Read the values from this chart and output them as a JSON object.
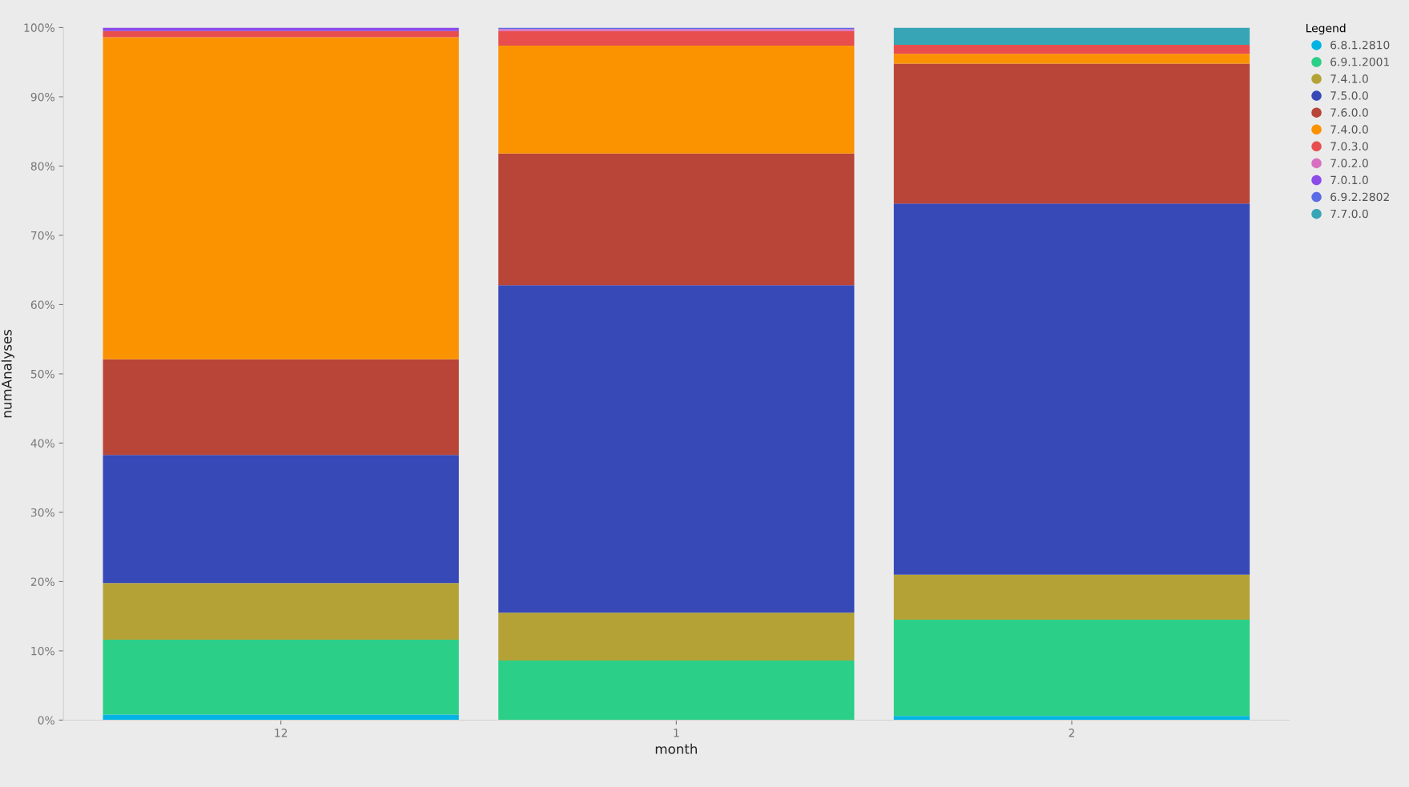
{
  "chart_data": {
    "type": "bar",
    "stacked": true,
    "xlabel": "month",
    "ylabel": "numAnalyses",
    "legend_title": "Legend",
    "categories": [
      "12",
      "1",
      "2"
    ],
    "series": [
      {
        "name": "6.8.1.2810",
        "color": "#01b4e4",
        "values": [
          0.8,
          0,
          0.6
        ]
      },
      {
        "name": "6.9.1.2001",
        "color": "#2bcf87",
        "values": [
          10.8,
          8.6,
          13.9
        ]
      },
      {
        "name": "7.4.1.0",
        "color": "#b5a236",
        "values": [
          8.2,
          6.9,
          6.5
        ]
      },
      {
        "name": "7.5.0.0",
        "color": "#3748b7",
        "values": [
          18.5,
          47.3,
          53.6
        ]
      },
      {
        "name": "7.6.0.0",
        "color": "#b84538",
        "values": [
          13.8,
          19.0,
          20.2
        ]
      },
      {
        "name": "7.4.0.0",
        "color": "#fb9300",
        "values": [
          46.5,
          15.6,
          1.4
        ]
      },
      {
        "name": "7.0.3.0",
        "color": "#e84e4e",
        "values": [
          0.9,
          2.1,
          1.3
        ]
      },
      {
        "name": "7.0.2.0",
        "color": "#d86fc0",
        "values": [
          0,
          0.3,
          0
        ]
      },
      {
        "name": "7.0.1.0",
        "color": "#8c4ce8",
        "values": [
          0.5,
          0,
          0
        ]
      },
      {
        "name": "6.9.2.2802",
        "color": "#5b6ce6",
        "values": [
          0,
          0.2,
          0
        ]
      },
      {
        "name": "7.7.0.0",
        "color": "#37a5b5",
        "values": [
          0,
          0,
          2.5
        ]
      }
    ],
    "ylim": [
      0,
      100
    ],
    "yticks": [
      {
        "value": 0,
        "label": "0%"
      },
      {
        "value": 10,
        "label": "10%"
      },
      {
        "value": 20,
        "label": "20%"
      },
      {
        "value": 30,
        "label": "30%"
      },
      {
        "value": 40,
        "label": "40%"
      },
      {
        "value": 50,
        "label": "50%"
      },
      {
        "value": 60,
        "label": "60%"
      },
      {
        "value": 70,
        "label": "70%"
      },
      {
        "value": 80,
        "label": "80%"
      },
      {
        "value": 90,
        "label": "90%"
      },
      {
        "value": 100,
        "label": "100%"
      }
    ],
    "grid": false,
    "legend": "top right"
  }
}
